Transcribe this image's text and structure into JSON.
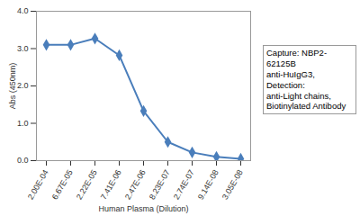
{
  "chart_data": {
    "type": "line",
    "x_label": "Human Plasma (Dilution)",
    "y_label": "Abs (450nm)",
    "annotation": [
      "Capture: NBP2-62125B",
      "anti-HuIgG3,",
      "Detection:",
      "anti-Light chains,",
      "Biotinylated Antibody"
    ],
    "categories": [
      "2.00E-04",
      "6.67E-05",
      "2.22E-05",
      "7.41E-06",
      "2.47E-06",
      "8.23E-07",
      "2.74E-07",
      "9.14E-08",
      "3.05E-08"
    ],
    "values": [
      3.1,
      3.1,
      3.27,
      2.82,
      1.33,
      0.5,
      0.22,
      0.1,
      0.05
    ],
    "color": "#4a7ebb",
    "marker": "diamond",
    "ylim": [
      0,
      4
    ],
    "yticks": [
      0,
      1,
      2,
      3,
      4
    ],
    "grid": false
  }
}
